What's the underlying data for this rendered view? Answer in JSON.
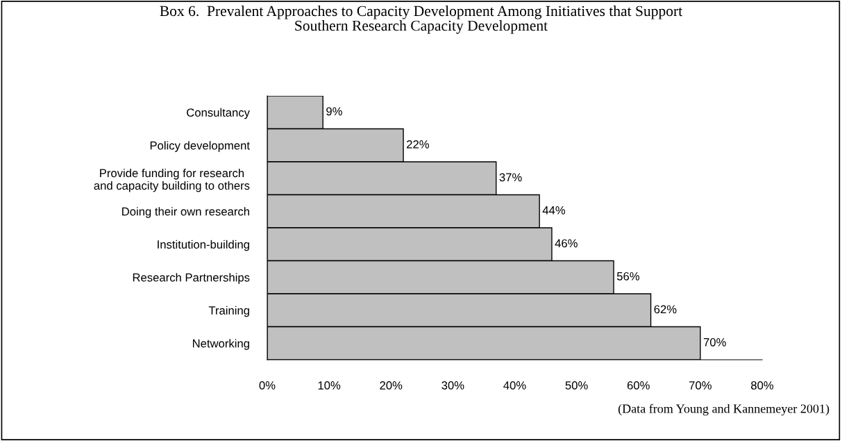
{
  "chart_data": {
    "type": "bar",
    "orientation": "horizontal",
    "title": "Box 6.  Prevalent Approaches to Capacity Development Among Initiatives that Support\nSouthern Research Capacity Development",
    "categories": [
      "Consultancy",
      "Policy development",
      "Provide funding for research\nand capacity building to others",
      "Doing their own research",
      "Institution-building",
      "Research Partnerships",
      "Training",
      "Networking"
    ],
    "values": [
      9,
      22,
      37,
      44,
      46,
      56,
      62,
      70
    ],
    "value_labels": [
      "9%",
      "22%",
      "37%",
      "44%",
      "46%",
      "56%",
      "62%",
      "70%"
    ],
    "color": "#c0c0c0",
    "xlim": [
      0,
      80
    ],
    "xticks": [
      {
        "value": 0,
        "label": "0%"
      },
      {
        "value": 10,
        "label": "10%"
      },
      {
        "value": 20,
        "label": "20%"
      },
      {
        "value": 30,
        "label": "30%"
      },
      {
        "value": 40,
        "label": "40%"
      },
      {
        "value": 50,
        "label": "50%"
      },
      {
        "value": 60,
        "label": "60%"
      },
      {
        "value": 70,
        "label": "70%"
      },
      {
        "value": 80,
        "label": "80%"
      }
    ],
    "grid": false,
    "legend": false,
    "annotations": [
      "(Data from Young and Kannemeyer 2001)"
    ]
  }
}
